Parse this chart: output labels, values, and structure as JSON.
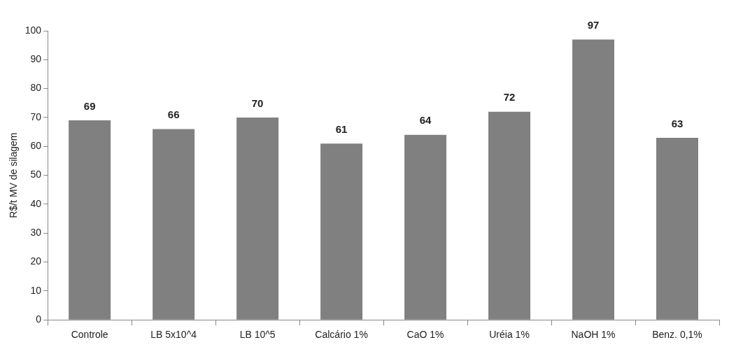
{
  "chart_data": {
    "type": "bar",
    "ylabel": "R$/t MV de silagem",
    "categories": [
      "Controle",
      "LB 5x10^4",
      "LB 10^5",
      "Calcário 1%",
      "CaO 1%",
      "Uréia 1%",
      "NaOH 1%",
      "Benz. 0,1%"
    ],
    "values": [
      69,
      66,
      70,
      61,
      64,
      72,
      97,
      63
    ],
    "color": "#808080",
    "ylim": [
      0,
      100
    ],
    "yticks": [
      0,
      10,
      20,
      30,
      40,
      50,
      60,
      70,
      80,
      90,
      100
    ],
    "grid": false,
    "legend": false,
    "data_labels": true
  }
}
